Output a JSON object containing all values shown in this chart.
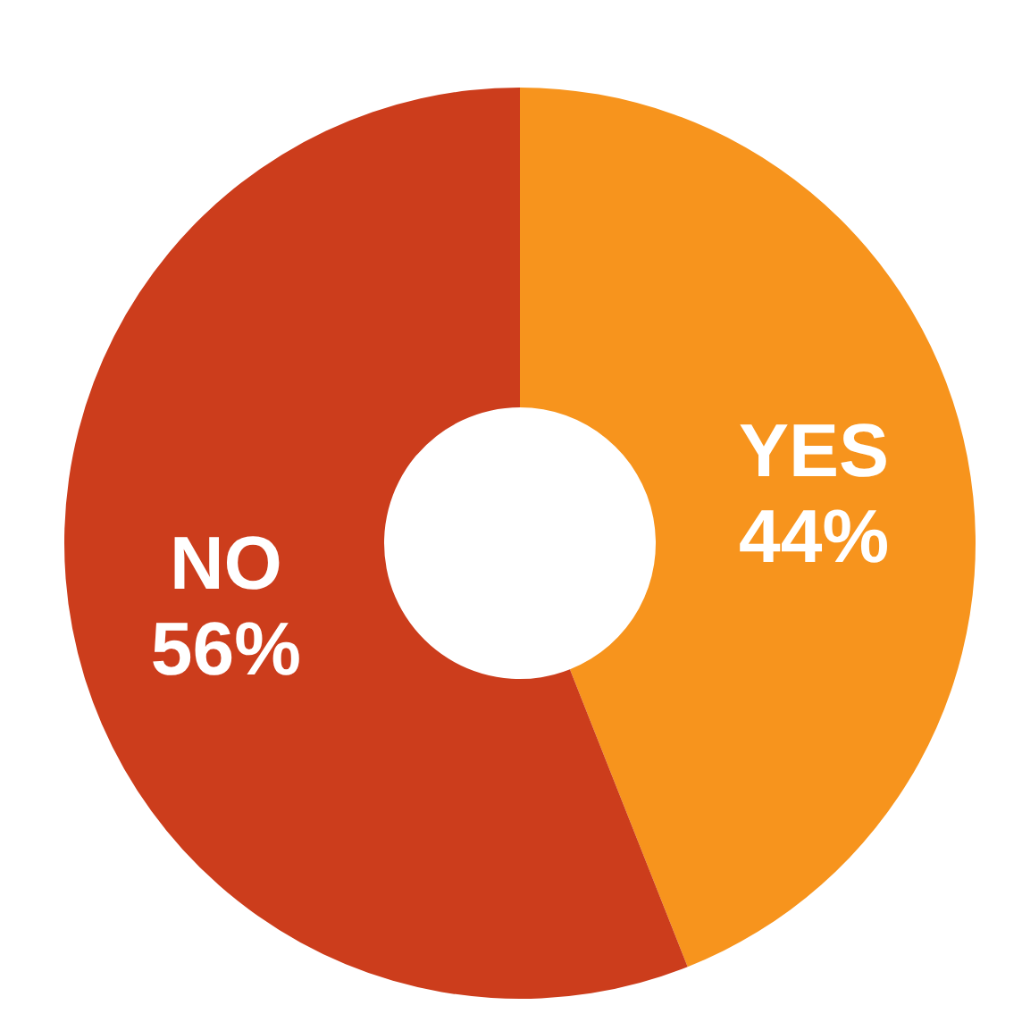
{
  "chart_data": {
    "type": "donut",
    "categories": [
      "YES",
      "NO"
    ],
    "values": [
      44,
      56
    ],
    "value_labels": [
      "44%",
      "56%"
    ],
    "colors": [
      "#f7941d",
      "#cc3d1c"
    ],
    "legend": false
  }
}
